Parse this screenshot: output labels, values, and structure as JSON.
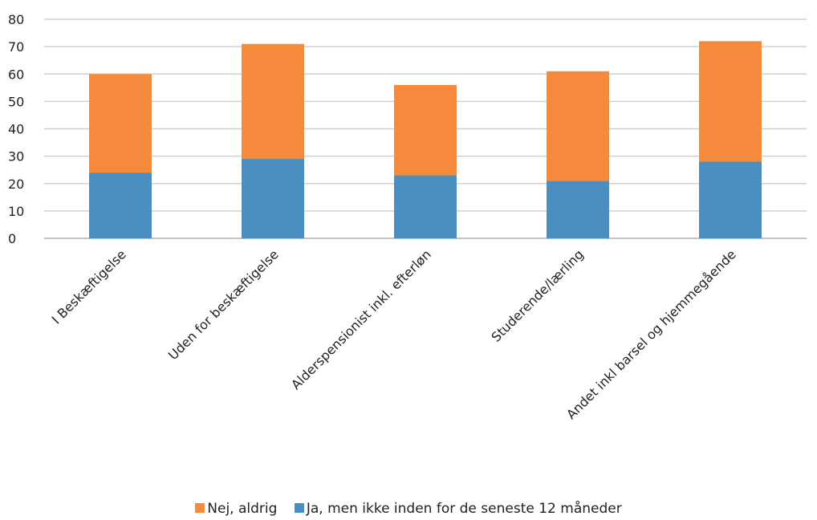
{
  "chart_data": {
    "type": "bar",
    "stacked": true,
    "categories": [
      "I Beskæftigelse",
      "Uden for beskæftigelse",
      "Alderspensionist inkl. efterløn",
      "Studerende/lærling",
      "Andet inkl barsel og hjemmegående"
    ],
    "series": [
      {
        "name": "Ja, men ikke inden for de seneste 12 måneder",
        "color": "#4a8fbf",
        "values": [
          24,
          29,
          23,
          21,
          28
        ]
      },
      {
        "name": "Nej, aldrig",
        "color": "#f58a3c",
        "values": [
          36,
          42,
          33,
          40,
          44
        ]
      }
    ],
    "yticks": [
      "0",
      "10",
      "20",
      "30",
      "40",
      "50",
      "60",
      "70",
      "80"
    ],
    "ylim": [
      0,
      80
    ],
    "grid": true,
    "legend_position": "bottom",
    "title": "",
    "xlabel": "",
    "ylabel": ""
  }
}
